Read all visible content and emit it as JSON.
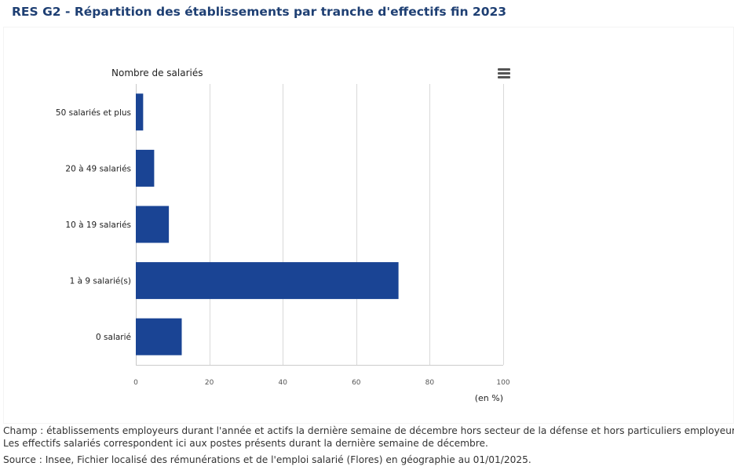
{
  "title": "RES G2 - Répartition des établissements par tranche d'effectifs fin 2023",
  "chart_data": {
    "type": "bar",
    "orientation": "horizontal",
    "ylabel": "Nombre de salariés",
    "xunit": "(en %)",
    "categories": [
      "50 salariés et plus",
      "20 à 49 salariés",
      "10 à 19 salariés",
      "1 à 9 salarié(s)",
      "0 salarié"
    ],
    "values": [
      2.0,
      5.0,
      9.0,
      71.5,
      12.5
    ],
    "xlim": [
      0,
      100
    ],
    "xticks": [
      0,
      20,
      40,
      60,
      80,
      100
    ],
    "grid": true,
    "legend": "none",
    "bar_color": "#1a4494"
  },
  "notes": {
    "champ": "Champ : établissements employeurs durant l'année et actifs la dernière semaine de décembre hors secteur de la défense et hors particuliers employeurs.",
    "effectifs": "Les effectifs salariés correspondent ici aux postes présents durant la dernière semaine de décembre.",
    "source": "Source : Insee, Fichier localisé des rémunérations et de l'emploi salarié (Flores) en géographie au 01/01/2025."
  },
  "menu_icon": "hamburger-menu-icon"
}
